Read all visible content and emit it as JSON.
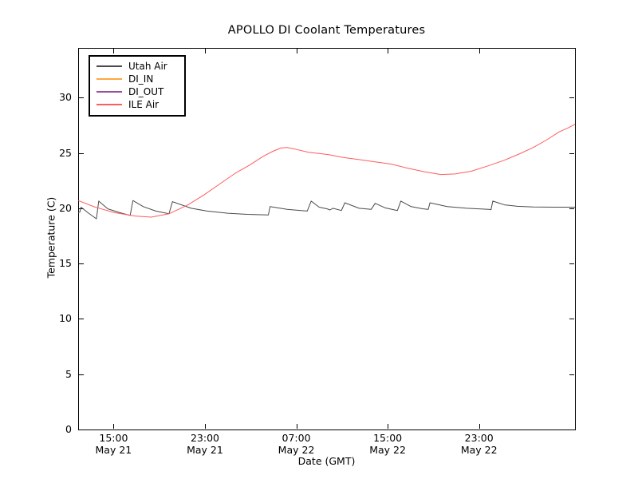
{
  "title": "APOLLO DI Coolant Temperatures",
  "axes": {
    "xlabel": "Date (GMT)",
    "ylabel": "Temperature (C)"
  },
  "chart_data": {
    "type": "line",
    "title": "APOLLO DI Coolant Temperatures",
    "xlabel": "Date (GMT)",
    "ylabel": "Temperature (C)",
    "x_unit": "hours since May 21 00:00 GMT",
    "xlim": [
      11.9,
      55.4
    ],
    "ylim": [
      0,
      34.5
    ],
    "grid": false,
    "legend_position": "upper left",
    "x_ticks": [
      {
        "hour": 15,
        "line1": "15:00",
        "line2": "May 21"
      },
      {
        "hour": 23,
        "line1": "23:00",
        "line2": "May 21"
      },
      {
        "hour": 31,
        "line1": "07:00",
        "line2": "May 22"
      },
      {
        "hour": 39,
        "line1": "15:00",
        "line2": "May 22"
      },
      {
        "hour": 47,
        "line1": "23:00",
        "line2": "May 22"
      }
    ],
    "y_ticks": [
      0,
      5,
      10,
      15,
      20,
      25,
      30
    ],
    "series": [
      {
        "name": "Utah Air",
        "color": "#4a4a4a",
        "width": 1,
        "points": [
          [
            11.9,
            19.6
          ],
          [
            12.05,
            19.65
          ],
          [
            12.15,
            20.1
          ],
          [
            12.75,
            19.6
          ],
          [
            13.5,
            19.05
          ],
          [
            13.7,
            20.65
          ],
          [
            14.5,
            19.95
          ],
          [
            15.55,
            19.6
          ],
          [
            16.45,
            19.35
          ],
          [
            16.7,
            20.7
          ],
          [
            17.6,
            20.15
          ],
          [
            18.7,
            19.75
          ],
          [
            19.85,
            19.5
          ],
          [
            20.15,
            20.6
          ],
          [
            21.8,
            20.0
          ],
          [
            23.2,
            19.75
          ],
          [
            25.0,
            19.55
          ],
          [
            26.7,
            19.45
          ],
          [
            28.55,
            19.4
          ],
          [
            28.7,
            20.15
          ],
          [
            30.2,
            19.9
          ],
          [
            31.95,
            19.75
          ],
          [
            32.3,
            20.65
          ],
          [
            33.0,
            20.1
          ],
          [
            33.7,
            19.95
          ],
          [
            33.95,
            19.85
          ],
          [
            34.2,
            20.0
          ],
          [
            34.95,
            19.8
          ],
          [
            35.25,
            20.5
          ],
          [
            36.5,
            20.0
          ],
          [
            37.55,
            19.9
          ],
          [
            37.9,
            20.45
          ],
          [
            38.75,
            20.05
          ],
          [
            39.85,
            19.8
          ],
          [
            40.15,
            20.65
          ],
          [
            41.05,
            20.15
          ],
          [
            42.1,
            19.95
          ],
          [
            42.55,
            19.9
          ],
          [
            42.7,
            20.5
          ],
          [
            44.2,
            20.15
          ],
          [
            45.95,
            20.0
          ],
          [
            47.85,
            19.9
          ],
          [
            48.05,
            19.88
          ],
          [
            48.2,
            20.65
          ],
          [
            49.25,
            20.3
          ],
          [
            50.35,
            20.18
          ],
          [
            51.75,
            20.12
          ],
          [
            53.65,
            20.1
          ],
          [
            55.4,
            20.1
          ]
        ]
      },
      {
        "name": "DI_IN",
        "color": "#ffa83e",
        "width": 1,
        "points": []
      },
      {
        "name": "DI_OUT",
        "color": "#96509b",
        "width": 1,
        "points": []
      },
      {
        "name": "ILE Air",
        "color": "#ff5c5c",
        "width": 1,
        "points": [
          [
            11.9,
            20.7
          ],
          [
            13.4,
            20.1
          ],
          [
            15.1,
            19.6
          ],
          [
            16.9,
            19.3
          ],
          [
            18.3,
            19.2
          ],
          [
            19.85,
            19.5
          ],
          [
            21.5,
            20.3
          ],
          [
            22.9,
            21.2
          ],
          [
            24.3,
            22.2
          ],
          [
            25.7,
            23.2
          ],
          [
            26.9,
            23.9
          ],
          [
            28.1,
            24.7
          ],
          [
            28.95,
            25.15
          ],
          [
            29.65,
            25.45
          ],
          [
            30.2,
            25.5
          ],
          [
            30.9,
            25.35
          ],
          [
            32.1,
            25.05
          ],
          [
            33.0,
            24.95
          ],
          [
            33.85,
            24.85
          ],
          [
            35.1,
            24.6
          ],
          [
            36.5,
            24.4
          ],
          [
            37.9,
            24.2
          ],
          [
            39.3,
            24.0
          ],
          [
            40.85,
            23.6
          ],
          [
            42.25,
            23.3
          ],
          [
            43.65,
            23.05
          ],
          [
            44.9,
            23.1
          ],
          [
            46.3,
            23.35
          ],
          [
            47.7,
            23.8
          ],
          [
            49.1,
            24.3
          ],
          [
            50.5,
            24.9
          ],
          [
            51.75,
            25.5
          ],
          [
            52.95,
            26.2
          ],
          [
            54.0,
            26.9
          ],
          [
            54.85,
            27.3
          ],
          [
            55.4,
            27.6
          ]
        ]
      }
    ]
  }
}
